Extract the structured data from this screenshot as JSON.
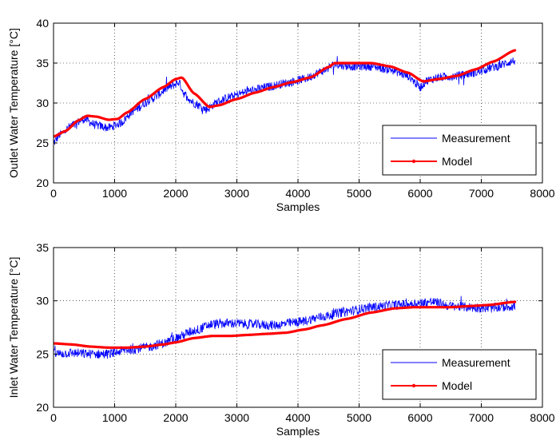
{
  "chart_data": [
    {
      "type": "line",
      "xlabel": "Samples",
      "ylabel": "Outlet Water Temperature [°C]",
      "xlim": [
        0,
        8000
      ],
      "ylim": [
        20,
        40
      ],
      "xticks": [
        0,
        1000,
        2000,
        3000,
        4000,
        5000,
        6000,
        7000,
        8000
      ],
      "yticks": [
        20,
        25,
        30,
        35,
        40
      ],
      "grid": true,
      "legend_position": "bottom-right",
      "series": [
        {
          "name": "Measurement",
          "color": "#0000ff",
          "noise": 0.55,
          "x": [
            0,
            100,
            300,
            500,
            700,
            900,
            1100,
            1300,
            1600,
            1900,
            2050,
            2150,
            2300,
            2500,
            2700,
            2900,
            3200,
            3500,
            3800,
            4100,
            4400,
            4600,
            4900,
            5200,
            5500,
            5800,
            6000,
            6100,
            6300,
            6600,
            6900,
            7200,
            7550
          ],
          "y": [
            25.0,
            26.0,
            27.2,
            28.0,
            27.2,
            26.9,
            27.5,
            29.0,
            30.5,
            32.0,
            32.6,
            31.0,
            30.0,
            29.2,
            30.2,
            30.8,
            31.5,
            32.0,
            32.5,
            33.0,
            34.0,
            34.8,
            34.6,
            34.6,
            34.2,
            33.4,
            32.0,
            32.8,
            33.2,
            33.4,
            33.8,
            34.5,
            35.3
          ]
        },
        {
          "name": "Model",
          "color": "#ff0000",
          "x": [
            0,
            200,
            400,
            550,
            700,
            900,
            1050,
            1200,
            1500,
            1800,
            2000,
            2100,
            2300,
            2550,
            2700,
            3000,
            3300,
            3600,
            3900,
            4200,
            4500,
            4600,
            4900,
            5200,
            5500,
            5800,
            6050,
            6300,
            6600,
            6900,
            7200,
            7550
          ],
          "y": [
            25.8,
            26.5,
            27.8,
            28.4,
            28.3,
            27.9,
            28.0,
            28.8,
            30.5,
            32.0,
            33.0,
            33.2,
            31.2,
            29.5,
            29.7,
            30.5,
            31.3,
            32.0,
            32.6,
            33.2,
            34.5,
            35.0,
            35.0,
            35.0,
            34.6,
            33.8,
            32.7,
            33.0,
            33.4,
            34.2,
            35.2,
            36.6
          ]
        }
      ]
    },
    {
      "type": "line",
      "xlabel": "Samples",
      "ylabel": "Inlet Water Temperature [°C]",
      "xlim": [
        0,
        8000
      ],
      "ylim": [
        20,
        35
      ],
      "xticks": [
        0,
        1000,
        2000,
        3000,
        4000,
        5000,
        6000,
        7000,
        8000
      ],
      "yticks": [
        20,
        25,
        30,
        35
      ],
      "grid": true,
      "legend_position": "bottom-right",
      "series": [
        {
          "name": "Measurement",
          "color": "#0000ff",
          "noise": 0.45,
          "x": [
            0,
            300,
            600,
            900,
            1200,
            1500,
            1800,
            2000,
            2300,
            2600,
            2900,
            3200,
            3600,
            4000,
            4400,
            4800,
            5200,
            5600,
            6000,
            6200,
            6500,
            6800,
            7100,
            7550
          ],
          "y": [
            25.0,
            25.1,
            25.0,
            25.0,
            25.4,
            25.6,
            26.0,
            26.5,
            27.2,
            27.8,
            27.9,
            27.8,
            27.7,
            28.0,
            28.5,
            29.0,
            29.4,
            29.6,
            29.8,
            29.9,
            29.5,
            29.4,
            29.3,
            29.5
          ]
        },
        {
          "name": "Model",
          "color": "#ff0000",
          "x": [
            0,
            300,
            600,
            900,
            1200,
            1500,
            1800,
            2000,
            2300,
            2600,
            2900,
            3200,
            3500,
            3800,
            4100,
            4400,
            4800,
            5200,
            5600,
            5900,
            6200,
            6500,
            6800,
            7100,
            7550
          ],
          "y": [
            26.0,
            25.9,
            25.7,
            25.6,
            25.6,
            25.7,
            25.9,
            26.1,
            26.5,
            26.7,
            26.7,
            26.8,
            26.9,
            27.0,
            27.3,
            27.7,
            28.3,
            28.9,
            29.3,
            29.4,
            29.4,
            29.4,
            29.5,
            29.6,
            29.9
          ]
        }
      ]
    }
  ]
}
